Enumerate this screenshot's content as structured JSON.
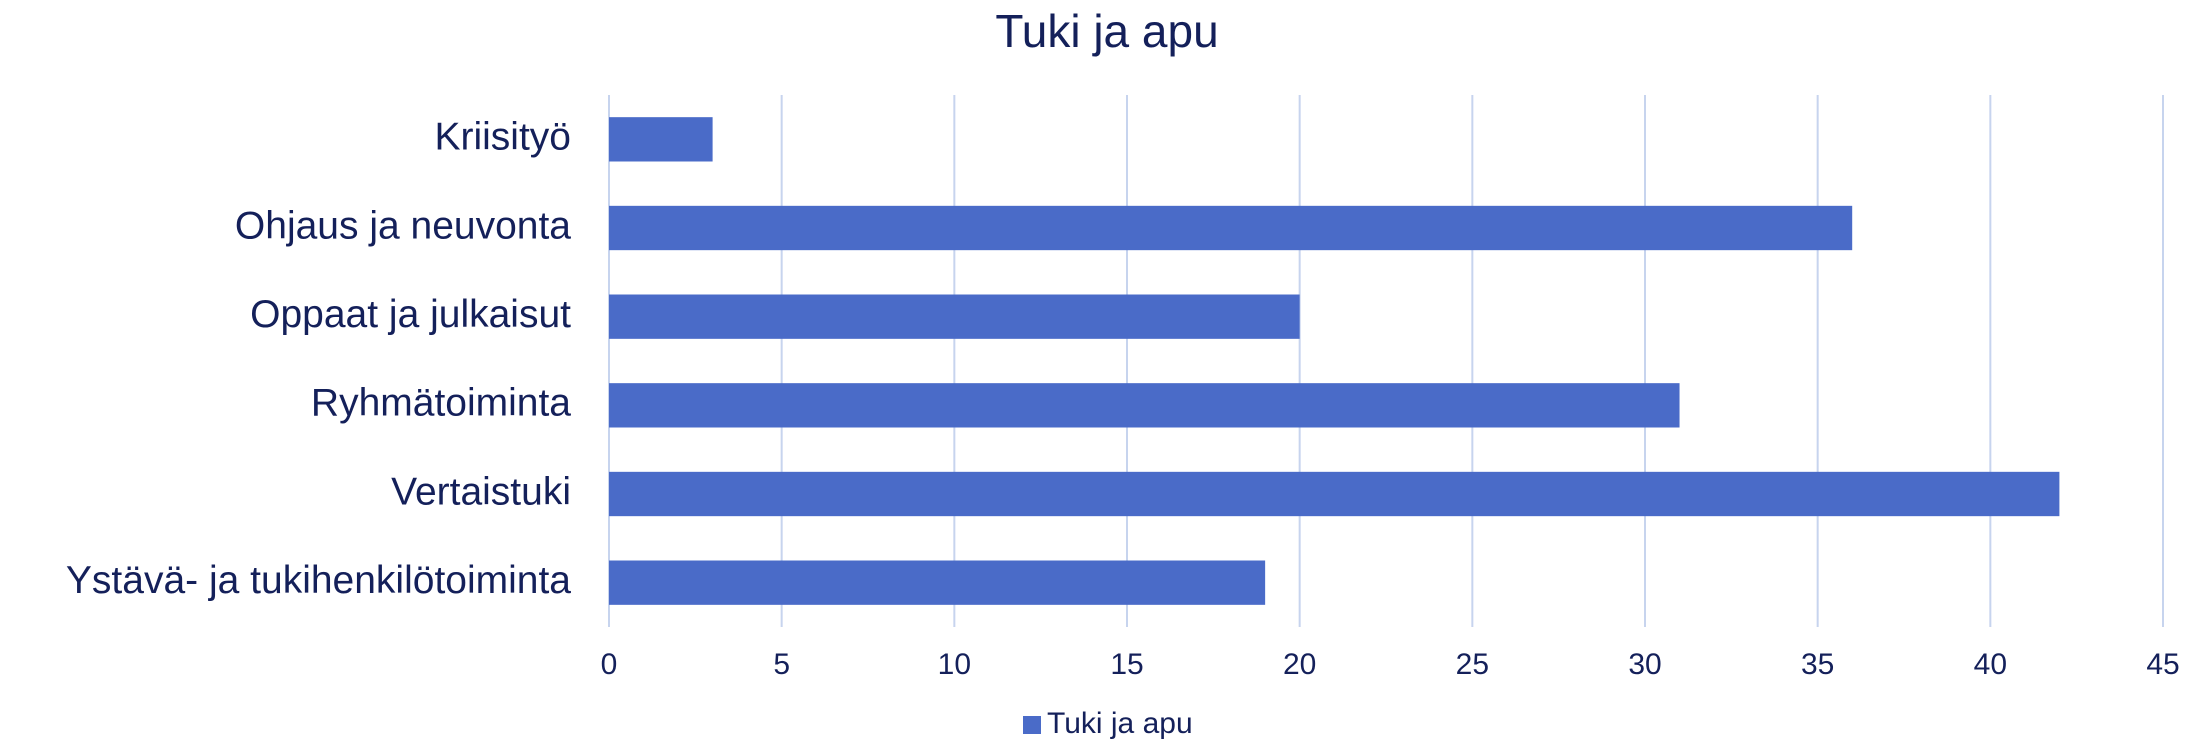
{
  "chart_data": {
    "type": "bar",
    "orientation": "horizontal",
    "title": "Tuki ja apu",
    "categories": [
      "Kriisityö",
      "Ohjaus ja neuvonta",
      "Oppaat ja julkaisut",
      "Ryhmätoiminta",
      "Vertaistuki",
      "Ystävä- ja tukihenkilötoiminta"
    ],
    "series": [
      {
        "name": "Tuki ja apu",
        "color": "#4a6bc8",
        "values": [
          3,
          36,
          20,
          31,
          42,
          19
        ]
      }
    ],
    "xlim": [
      0,
      45
    ],
    "xticks": [
      0,
      5,
      10,
      15,
      20,
      25,
      30,
      35,
      40,
      45
    ],
    "grid": true,
    "legend": "bottom"
  }
}
